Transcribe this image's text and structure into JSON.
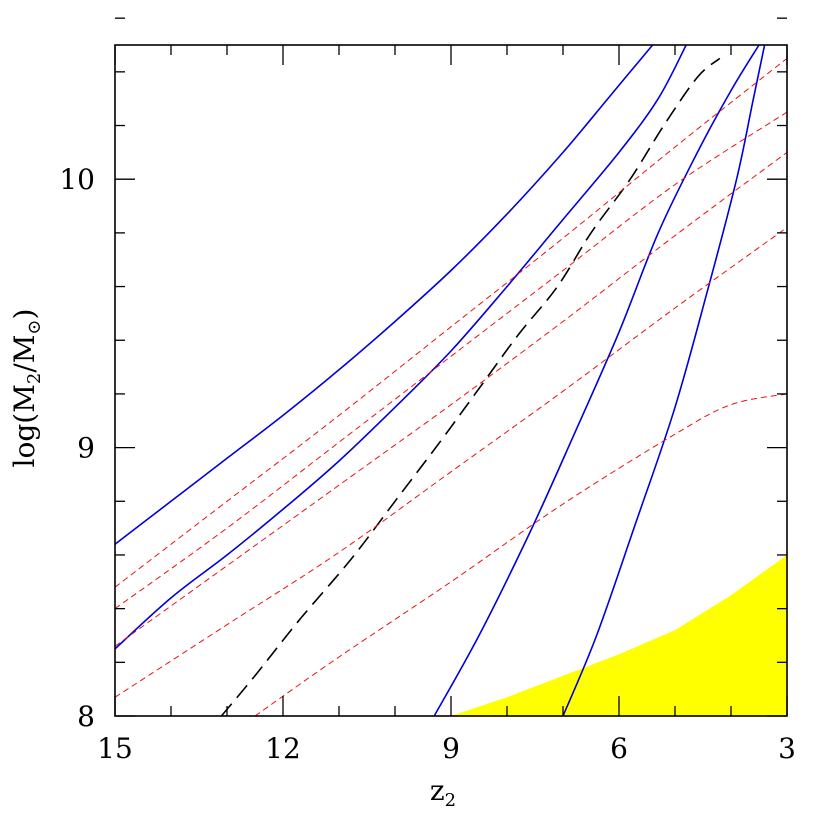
{
  "chart_data": {
    "type": "line",
    "xlabel": "z",
    "xlabel_sub": "2",
    "ylabel_prefix": "log(M",
    "ylabel_sub1": "2",
    "ylabel_mid": "/M",
    "ylabel_sub2": "⊙",
    "ylabel_suffix": ")",
    "xlim": [
      15,
      3
    ],
    "ylim": [
      8,
      10.5
    ],
    "x_ticks": [
      15,
      12,
      9,
      6,
      3
    ],
    "x_tick_labels": [
      "15",
      "12",
      "9",
      "6",
      "3"
    ],
    "y_ticks": [
      8,
      9,
      10
    ],
    "y_tick_labels": [
      "8",
      "9",
      "10"
    ],
    "x_minor_step": 1,
    "y_minor_step": 0.2,
    "grid": false,
    "colors": {
      "solid": "#0000dd",
      "dashed_red": "#ee1111",
      "dashed_black": "#000000",
      "shaded": "#ffff00"
    },
    "series": [
      {
        "style": "solid",
        "color": "blue",
        "x": [
          15,
          14,
          13,
          12,
          11,
          10,
          9,
          8,
          7,
          6.2,
          5.4
        ],
        "y": [
          8.64,
          8.8,
          8.96,
          9.12,
          9.29,
          9.47,
          9.66,
          9.87,
          10.1,
          10.3,
          10.5
        ]
      },
      {
        "style": "solid",
        "color": "blue",
        "x": [
          15,
          14,
          13,
          12,
          11,
          10,
          9,
          8,
          7,
          6,
          5.3,
          4.8
        ],
        "y": [
          8.25,
          8.44,
          8.6,
          8.77,
          8.95,
          9.15,
          9.36,
          9.6,
          9.85,
          10.1,
          10.3,
          10.5
        ]
      },
      {
        "style": "solid",
        "color": "blue",
        "x": [
          9.3,
          8.5,
          7.6,
          6.8,
          6.0,
          5.3,
          4.6,
          4.0,
          3.5
        ],
        "y": [
          8.0,
          8.3,
          8.68,
          9.05,
          9.43,
          9.8,
          10.1,
          10.33,
          10.5
        ]
      },
      {
        "style": "solid",
        "color": "blue",
        "x": [
          7.0,
          6.4,
          5.7,
          5.0,
          4.4,
          3.9,
          3.6,
          3.4
        ],
        "y": [
          8.0,
          8.3,
          8.72,
          9.15,
          9.6,
          10.0,
          10.3,
          10.5
        ]
      },
      {
        "style": "dashed",
        "color": "black",
        "x": [
          13.1,
          12.5,
          11.7,
          10.8,
          10.0,
          9.2,
          8.5,
          7.8,
          7.1,
          6.5,
          5.8,
          5.2,
          4.6,
          4.2
        ],
        "y": [
          8.0,
          8.15,
          8.36,
          8.58,
          8.8,
          9.02,
          9.22,
          9.42,
          9.6,
          9.8,
          10.0,
          10.2,
          10.38,
          10.45
        ]
      },
      {
        "style": "dashed",
        "color": "red",
        "x": [
          15,
          13,
          11,
          9,
          7,
          5,
          3
        ],
        "y": [
          8.48,
          8.8,
          9.12,
          9.45,
          9.78,
          10.12,
          10.45
        ]
      },
      {
        "style": "dashed",
        "color": "red",
        "x": [
          15,
          13,
          11,
          9,
          7,
          5,
          3
        ],
        "y": [
          8.4,
          8.7,
          9.02,
          9.34,
          9.66,
          9.98,
          10.25
        ]
      },
      {
        "style": "dashed",
        "color": "red",
        "x": [
          15,
          13,
          11,
          9,
          7,
          5,
          3
        ],
        "y": [
          8.26,
          8.56,
          8.86,
          9.16,
          9.47,
          9.79,
          10.1
        ]
      },
      {
        "style": "dashed",
        "color": "red",
        "x": [
          15,
          13,
          11,
          9,
          7,
          5,
          3
        ],
        "y": [
          8.07,
          8.34,
          8.61,
          8.91,
          9.21,
          9.52,
          9.82
        ]
      },
      {
        "style": "dashed",
        "color": "red",
        "x": [
          12.5,
          11,
          9,
          7,
          5,
          4,
          3
        ],
        "y": [
          8.0,
          8.22,
          8.5,
          8.79,
          9.05,
          9.16,
          9.2
        ]
      }
    ],
    "shaded_region": {
      "color": "yellow",
      "x": [
        9.0,
        8,
        7,
        6,
        5,
        4,
        3,
        3
      ],
      "y": [
        8.0,
        8.07,
        8.15,
        8.23,
        8.32,
        8.45,
        8.6,
        8.0
      ]
    }
  }
}
